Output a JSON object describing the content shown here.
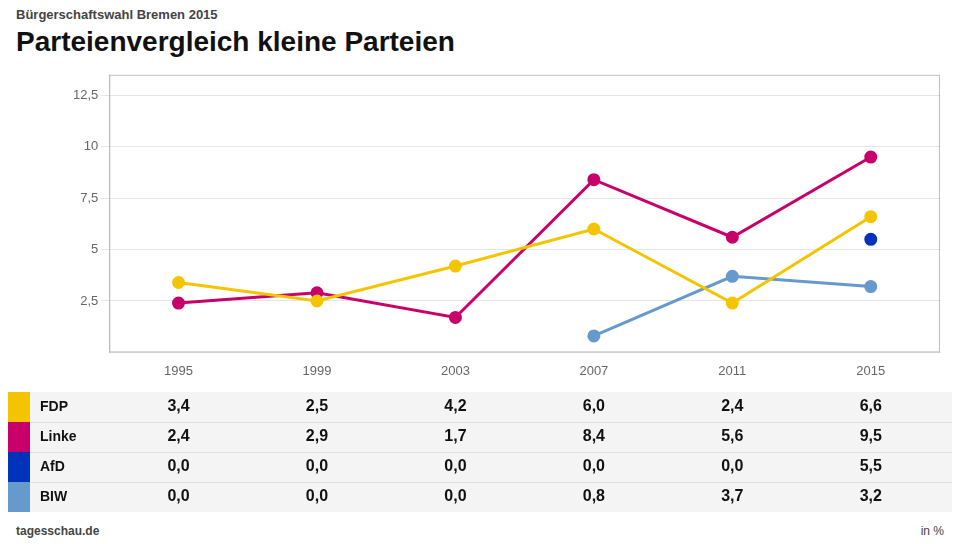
{
  "chart_data": {
    "type": "line",
    "title": "Parteienvergleich kleine Parteien",
    "subtitle": "Bürgerschaftswahl Bremen 2015",
    "categories": [
      1995,
      1999,
      2003,
      2007,
      2011,
      2015
    ],
    "series": [
      {
        "name": "FDP",
        "color": "#F5C400",
        "values": [
          3.4,
          2.5,
          4.2,
          6.0,
          2.4,
          6.6
        ],
        "value_labels": [
          "3,4",
          "2,5",
          "4,2",
          "6,0",
          "2,4",
          "6,6"
        ]
      },
      {
        "name": "Linke",
        "color": "#C8006A",
        "values": [
          2.4,
          2.9,
          1.7,
          8.4,
          5.6,
          9.5
        ],
        "value_labels": [
          "2,4",
          "2,9",
          "1,7",
          "8,4",
          "5,6",
          "9,5"
        ]
      },
      {
        "name": "AfD",
        "color": "#0033BB",
        "values": [
          0.0,
          0.0,
          0.0,
          0.0,
          0.0,
          5.5
        ],
        "value_labels": [
          "0,0",
          "0,0",
          "0,0",
          "0,0",
          "0,0",
          "5,5"
        ]
      },
      {
        "name": "BIW",
        "color": "#6699CC",
        "values": [
          0.0,
          0.0,
          0.0,
          0.8,
          3.7,
          3.2
        ],
        "value_labels": [
          "0,0",
          "0,0",
          "0,0",
          "0,8",
          "3,7",
          "3,2"
        ]
      }
    ],
    "ylim": [
      0,
      13.5
    ],
    "yticks": [
      {
        "value": 2.5,
        "label": "2,5"
      },
      5,
      {
        "value": 7.5,
        "label": "7,5"
      },
      10,
      {
        "value": 12.5,
        "label": "12,5"
      }
    ],
    "grid": true,
    "marker": "circle",
    "annotations": [
      "tagesschau.de",
      "in %"
    ]
  }
}
